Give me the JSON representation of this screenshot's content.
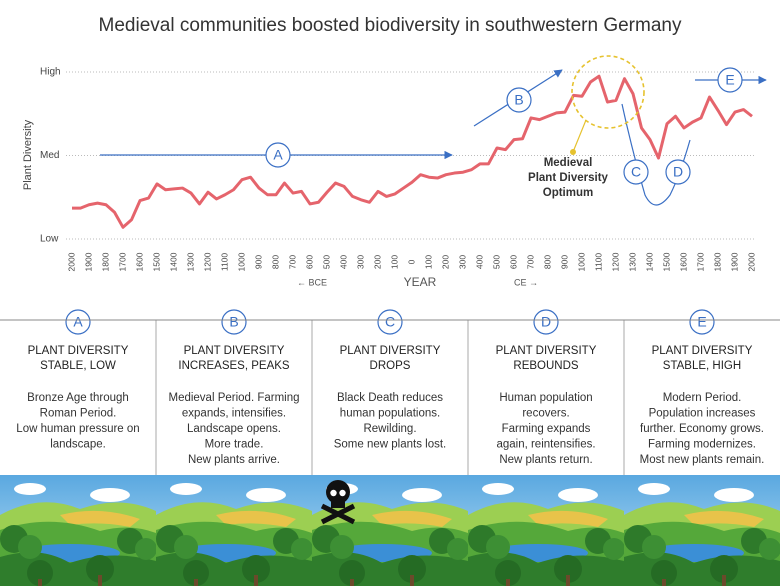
{
  "chart_data": {
    "type": "line",
    "title": "Medieval communities boosted biodiversity in southwestern Germany",
    "y_label": "Plant Diversity",
    "x_label": "YEAR",
    "x_left_label": "← BCE",
    "x_right_label": "CE →",
    "xlim": [
      -2000,
      2000
    ],
    "xticks": [
      {
        "value": -2000,
        "label": "2000"
      },
      {
        "value": -1900,
        "label": "1900"
      },
      {
        "value": -1800,
        "label": "1800"
      },
      {
        "value": -1700,
        "label": "1700"
      },
      {
        "value": -1600,
        "label": "1600"
      },
      {
        "value": -1500,
        "label": "1500"
      },
      {
        "value": -1400,
        "label": "1400"
      },
      {
        "value": -1300,
        "label": "1300"
      },
      {
        "value": -1200,
        "label": "1200"
      },
      {
        "value": -1100,
        "label": "1100"
      },
      {
        "value": -1000,
        "label": "1000"
      },
      {
        "value": -900,
        "label": "900"
      },
      {
        "value": -800,
        "label": "800"
      },
      {
        "value": -700,
        "label": "700"
      },
      {
        "value": -600,
        "label": "600"
      },
      {
        "value": -500,
        "label": "500"
      },
      {
        "value": -400,
        "label": "400"
      },
      {
        "value": -300,
        "label": "300"
      },
      {
        "value": -200,
        "label": "200"
      },
      {
        "value": -100,
        "label": "100"
      },
      0,
      100,
      200,
      300,
      400,
      500,
      600,
      700,
      800,
      900,
      1000,
      1100,
      1200,
      1300,
      1400,
      1500,
      1600,
      1700,
      1800,
      1900,
      2000
    ],
    "ylim": [
      0,
      2
    ],
    "yticks": [
      {
        "value": 0,
        "label": "Low"
      },
      {
        "value": 1,
        "label": "Med"
      },
      {
        "value": 2,
        "label": "High"
      }
    ],
    "grid": true,
    "x": [
      -2000,
      -1950,
      -1900,
      -1850,
      -1800,
      -1750,
      -1700,
      -1650,
      -1600,
      -1550,
      -1500,
      -1450,
      -1400,
      -1350,
      -1300,
      -1250,
      -1200,
      -1150,
      -1100,
      -1050,
      -1000,
      -950,
      -900,
      -850,
      -800,
      -750,
      -700,
      -650,
      -600,
      -550,
      -500,
      -450,
      -400,
      -350,
      -300,
      -250,
      -200,
      -150,
      -100,
      -50,
      0,
      50,
      100,
      150,
      200,
      250,
      300,
      350,
      400,
      450,
      500,
      550,
      600,
      650,
      700,
      750,
      800,
      850,
      900,
      950,
      1000,
      1050,
      1100,
      1150,
      1200,
      1250,
      1300,
      1350,
      1400,
      1450,
      1500,
      1550,
      1600,
      1650,
      1700,
      1750,
      1800,
      1850,
      1900,
      1950,
      2000
    ],
    "series": [
      {
        "color": "#e5646c",
        "values": [
          0.37,
          0.37,
          0.41,
          0.43,
          0.41,
          0.32,
          0.14,
          0.23,
          0.46,
          0.49,
          0.66,
          0.59,
          0.6,
          0.61,
          0.55,
          0.42,
          0.56,
          0.48,
          0.53,
          0.59,
          0.71,
          0.74,
          0.61,
          0.53,
          0.53,
          0.67,
          0.55,
          0.57,
          0.42,
          0.44,
          0.56,
          0.67,
          0.63,
          0.51,
          0.47,
          0.44,
          0.57,
          0.51,
          0.54,
          0.61,
          0.68,
          0.77,
          0.74,
          0.73,
          0.77,
          0.79,
          0.8,
          0.83,
          0.9,
          0.9,
          1.09,
          1.07,
          1.19,
          1.2,
          1.45,
          1.43,
          1.47,
          1.51,
          1.52,
          1.72,
          1.71,
          1.88,
          1.95,
          1.64,
          1.66,
          1.92,
          1.74,
          1.33,
          1.19,
          0.97,
          1.38,
          1.47,
          1.33,
          1.4,
          1.45,
          1.7,
          1.54,
          1.37,
          1.52,
          1.55,
          1.47
        ]
      }
    ],
    "markers": [
      "A",
      "B",
      "C",
      "D",
      "E"
    ],
    "annotation": [
      "Medieval",
      "Plant Diversity",
      "Optimum"
    ]
  },
  "panels": [
    {
      "letter": "A",
      "title": [
        "PLANT DIVERSITY",
        "STABLE, LOW"
      ],
      "body": [
        "Bronze Age through",
        "Roman Period.",
        "Low human pressure on",
        "landscape."
      ]
    },
    {
      "letter": "B",
      "title": [
        "PLANT DIVERSITY",
        "INCREASES, PEAKS"
      ],
      "body": [
        "Medieval Period. Farming",
        "expands, intensifies.",
        "Landscape opens.",
        "More trade.",
        "New plants arrive."
      ]
    },
    {
      "letter": "C",
      "title": [
        "PLANT DIVERSITY",
        "DROPS"
      ],
      "body": [
        "Black Death reduces",
        "human populations.",
        "Rewilding.",
        "Some new plants lost."
      ]
    },
    {
      "letter": "D",
      "title": [
        "PLANT DIVERSITY",
        "REBOUNDS"
      ],
      "body": [
        "Human population",
        "recovers.",
        "Farming expands",
        "again, reintensifies.",
        "New plants return."
      ]
    },
    {
      "letter": "E",
      "title": [
        "PLANT DIVERSITY",
        "STABLE, HIGH"
      ],
      "body": [
        "Modern Period.",
        "Population increases",
        "further. Economy grows.",
        "Farming modernizes.",
        "Most new plants remain."
      ]
    }
  ]
}
